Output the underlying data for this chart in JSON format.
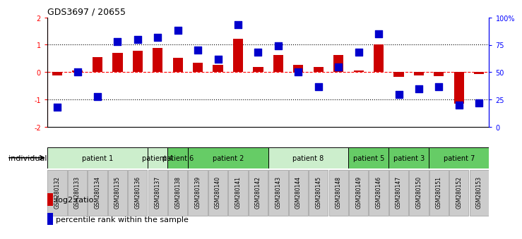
{
  "title": "GDS3697 / 20655",
  "samples": [
    "GSM280132",
    "GSM280133",
    "GSM280134",
    "GSM280135",
    "GSM280136",
    "GSM280137",
    "GSM280138",
    "GSM280139",
    "GSM280140",
    "GSM280141",
    "GSM280142",
    "GSM280143",
    "GSM280144",
    "GSM280145",
    "GSM280148",
    "GSM280149",
    "GSM280146",
    "GSM280147",
    "GSM280150",
    "GSM280151",
    "GSM280152",
    "GSM280153"
  ],
  "log2_ratio": [
    -0.12,
    0.07,
    0.55,
    0.7,
    0.78,
    0.88,
    0.52,
    0.35,
    0.28,
    1.22,
    0.2,
    0.62,
    0.28,
    0.2,
    0.62,
    0.07,
    1.0,
    -0.18,
    -0.12,
    -0.15,
    -1.15,
    -0.07
  ],
  "percentile": [
    18,
    50,
    28,
    78,
    80,
    82,
    88,
    70,
    62,
    93,
    68,
    74,
    50,
    37,
    55,
    68,
    85,
    30,
    35,
    37,
    20,
    22
  ],
  "patients": [
    {
      "label": "patient 1",
      "start": 0,
      "end": 5,
      "color": "#cceecc"
    },
    {
      "label": "patient 4",
      "start": 5,
      "end": 6,
      "color": "#cceecc"
    },
    {
      "label": "patient 6",
      "start": 6,
      "end": 7,
      "color": "#66cc66"
    },
    {
      "label": "patient 2",
      "start": 7,
      "end": 11,
      "color": "#66cc66"
    },
    {
      "label": "patient 8",
      "start": 11,
      "end": 15,
      "color": "#cceecc"
    },
    {
      "label": "patient 5",
      "start": 15,
      "end": 17,
      "color": "#66cc66"
    },
    {
      "label": "patient 3",
      "start": 17,
      "end": 19,
      "color": "#66cc66"
    },
    {
      "label": "patient 7",
      "start": 19,
      "end": 22,
      "color": "#66cc66"
    }
  ],
  "bar_color": "#cc0000",
  "dot_color": "#0000cc",
  "ylim_left": [
    -2,
    2
  ],
  "ylim_right": [
    0,
    100
  ],
  "yticks_left": [
    -2,
    -1,
    0,
    1,
    2
  ],
  "yticks_right": [
    0,
    25,
    50,
    75,
    100
  ],
  "yticklabels_right": [
    "0",
    "25",
    "50",
    "75",
    "100%"
  ],
  "bar_width": 0.5,
  "dot_size": 45,
  "grey_box_color": "#cccccc",
  "grey_box_edge": "#999999"
}
